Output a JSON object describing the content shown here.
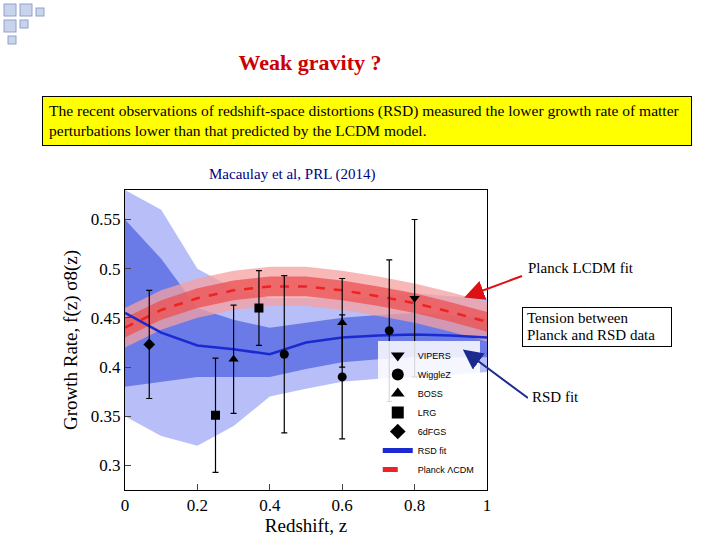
{
  "chart_data": {
    "type": "line",
    "title": "Weak gravity ?",
    "subtitle": "The recent observations of redshift-space distortions (RSD) measured the lower growth rate of matter perturbations lower than that predicted by the LCDM model.",
    "annotations": [
      "Macaulay et al, PRL (2014)",
      "Planck LCDM fit",
      "Tension between Planck and RSD data",
      "RSD fit"
    ],
    "x_label": "Redshift, z",
    "y_label": "Growth Rate, f(z) σ8(z)",
    "xlim": [
      0,
      1
    ],
    "ylim": [
      0.275,
      0.58
    ],
    "xticks": [
      0,
      0.2,
      0.4,
      0.6,
      0.8,
      1
    ],
    "yticks": [
      0.3,
      0.35,
      0.4,
      0.45,
      0.5,
      0.55
    ],
    "grid": false,
    "legend": "bottom right",
    "x": [
      0,
      0.1,
      0.2,
      0.3,
      0.4,
      0.5,
      0.6,
      0.7,
      0.8,
      0.9,
      1
    ],
    "series": [
      {
        "name": "Planck ΛCDM",
        "type": "line",
        "color": "#ee2222",
        "line_style": "dash",
        "values": [
          0.44,
          0.458,
          0.47,
          0.478,
          0.482,
          0.482,
          0.478,
          0.472,
          0.465,
          0.456,
          0.446
        ],
        "band_inner": {
          "lower": [
            0.43,
            0.448,
            0.46,
            0.468,
            0.472,
            0.472,
            0.468,
            0.462,
            0.455,
            0.446,
            0.436
          ],
          "upper": [
            0.45,
            0.468,
            0.48,
            0.488,
            0.492,
            0.492,
            0.488,
            0.482,
            0.475,
            0.466,
            0.456
          ]
        },
        "band_outer": {
          "lower": [
            0.42,
            0.438,
            0.45,
            0.458,
            0.462,
            0.462,
            0.458,
            0.452,
            0.445,
            0.436,
            0.426
          ],
          "upper": [
            0.46,
            0.478,
            0.49,
            0.498,
            0.502,
            0.502,
            0.498,
            0.492,
            0.485,
            0.476,
            0.466
          ]
        }
      },
      {
        "name": "RSD fit",
        "type": "line",
        "color": "#1a2ad0",
        "line_style": "solid",
        "values": [
          0.455,
          0.435,
          0.422,
          0.418,
          0.413,
          0.425,
          0.43,
          0.432,
          0.433,
          0.432,
          0.43
        ],
        "band_inner": {
          "lower": [
            0.38,
            0.385,
            0.39,
            0.39,
            0.39,
            0.398,
            0.405,
            0.408,
            0.41,
            0.41,
            0.41
          ],
          "upper": [
            0.55,
            0.51,
            0.46,
            0.448,
            0.44,
            0.445,
            0.45,
            0.453,
            0.455,
            0.453,
            0.45
          ]
        },
        "band_outer": {
          "lower": [
            0.35,
            0.33,
            0.32,
            0.34,
            0.37,
            0.378,
            0.385,
            0.388,
            0.39,
            0.392,
            0.395
          ],
          "upper": [
            0.58,
            0.56,
            0.5,
            0.48,
            0.47,
            0.47,
            0.47,
            0.472,
            0.475,
            0.472,
            0.47
          ]
        }
      },
      {
        "name": "6dFGS",
        "type": "scatter",
        "marker": "diamond",
        "color": "#000000",
        "x": [
          0.067
        ],
        "values": [
          0.423
        ],
        "error": [
          0.055
        ]
      },
      {
        "name": "LRG",
        "type": "scatter",
        "marker": "square",
        "color": "#000000",
        "x": [
          0.25,
          0.37
        ],
        "values": [
          0.351,
          0.46
        ],
        "error": [
          0.058,
          0.038
        ]
      },
      {
        "name": "BOSS",
        "type": "scatter",
        "marker": "triangle-up",
        "color": "#000000",
        "x": [
          0.3,
          0.6
        ],
        "values": [
          0.408,
          0.445
        ],
        "error": [
          0.055,
          0.045
        ]
      },
      {
        "name": "WiggleZ",
        "type": "scatter",
        "marker": "circle",
        "color": "#000000",
        "x": [
          0.44,
          0.6,
          0.73
        ],
        "values": [
          0.413,
          0.39,
          0.437
        ],
        "error": [
          0.08,
          0.063,
          0.072
        ]
      },
      {
        "name": "VIPERS",
        "type": "scatter",
        "marker": "triangle-down",
        "color": "#000000",
        "x": [
          0.8
        ],
        "values": [
          0.47
        ],
        "error": [
          0.08
        ]
      }
    ]
  }
}
